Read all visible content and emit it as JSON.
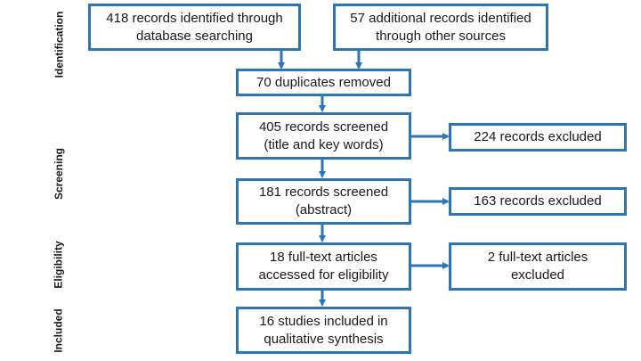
{
  "stages": [
    {
      "key": "identification",
      "label": "Identification"
    },
    {
      "key": "screening",
      "label": "Screening"
    },
    {
      "key": "eligibility",
      "label": "Eligibility"
    },
    {
      "key": "included",
      "label": "Included"
    }
  ],
  "boxes": {
    "database": "418 records identified through\ndatabase searching",
    "other_sources": "57 additional records identified\nthrough other sources",
    "duplicates": "70 duplicates removed",
    "screened_title": "405 records screened\n(title and key words)",
    "excluded_title": "224 records excluded",
    "screened_abstract": "181 records screened\n(abstract)",
    "excluded_abstract": "163 records excluded",
    "full_text": "18 full-text articles\naccessed for eligibility",
    "excluded_full_text": "2 full-text articles\nexcluded",
    "included": "16 studies included in\nqualitative synthesis"
  },
  "colors": {
    "box_border": "#2E75B6",
    "arrow": "#2E75B6",
    "text": "#1a1a1a"
  }
}
